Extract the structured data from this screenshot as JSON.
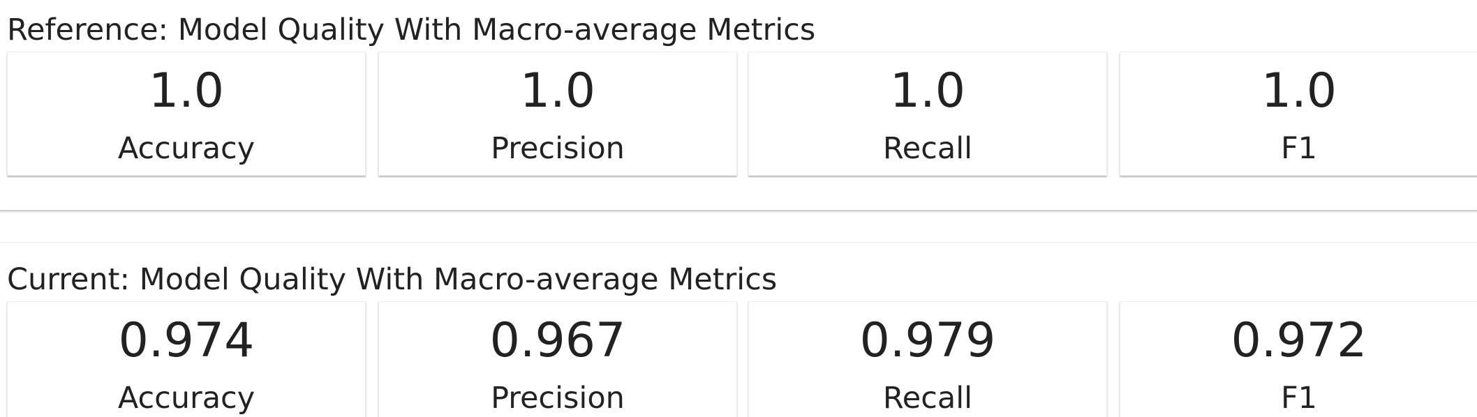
{
  "reference": {
    "title": "Reference: Model Quality With Macro-average Metrics",
    "metrics": [
      {
        "value": "1.0",
        "label": "Accuracy"
      },
      {
        "value": "1.0",
        "label": "Precision"
      },
      {
        "value": "1.0",
        "label": "Recall"
      },
      {
        "value": "1.0",
        "label": "F1"
      }
    ]
  },
  "current": {
    "title": "Current: Model Quality With Macro-average Metrics",
    "metrics": [
      {
        "value": "0.974",
        "label": "Accuracy"
      },
      {
        "value": "0.967",
        "label": "Precision"
      },
      {
        "value": "0.979",
        "label": "Recall"
      },
      {
        "value": "0.972",
        "label": "F1"
      }
    ]
  }
}
